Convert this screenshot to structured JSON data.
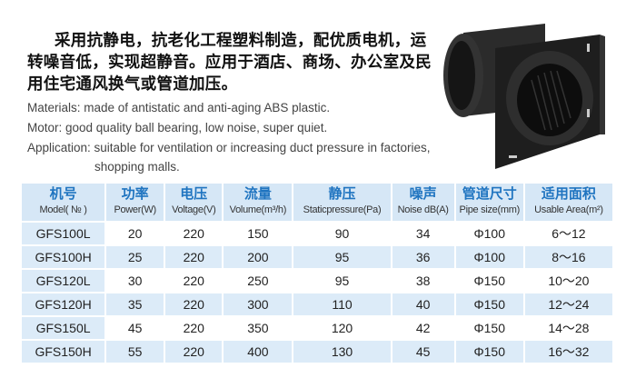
{
  "intro_cn": "采用抗静电，抗老化工程塑料制造，配优质电机，运转噪音低，实现超静音。应用于酒店、商场、办公室及民用住宅通风换气或管道加压。",
  "features": {
    "materials": "Materials: made of antistatic and anti-aging ABS plastic.",
    "motor": "Motor: good quality ball bearing, low noise, super quiet.",
    "application": "Application: suitable for ventilation or increasing duct pressure in factories,",
    "application_cont": "shopping malls."
  },
  "product_image": "black-abs-inline-duct-fan",
  "colors": {
    "header_text": "#1f74c0",
    "header_bg": "#d6e7f6",
    "row_bg": "#dcebf8"
  },
  "table": {
    "headers": [
      {
        "cn": "机号",
        "en": "Model( № )"
      },
      {
        "cn": "功率",
        "en": "Power(W)"
      },
      {
        "cn": "电压",
        "en": "Voltage(V)"
      },
      {
        "cn": "流量",
        "en": "Volume(m³/h)"
      },
      {
        "cn": "静压",
        "en": "Staticpressure(Pa)"
      },
      {
        "cn": "噪声",
        "en": "Noise dB(A)"
      },
      {
        "cn": "管道尺寸",
        "en": "Pipe size(mm)"
      },
      {
        "cn": "适用面积",
        "en": "Usable Area(m²)"
      }
    ],
    "rows": [
      [
        "GFS100L",
        "20",
        "220",
        "150",
        "90",
        "34",
        "Φ100",
        "6～12"
      ],
      [
        "GFS100H",
        "25",
        "220",
        "200",
        "95",
        "36",
        "Φ100",
        "8～16"
      ],
      [
        "GFS120L",
        "30",
        "220",
        "250",
        "95",
        "38",
        "Φ150",
        "10～20"
      ],
      [
        "GFS120H",
        "35",
        "220",
        "300",
        "110",
        "40",
        "Φ150",
        "12～24"
      ],
      [
        "GFS150L",
        "45",
        "220",
        "350",
        "120",
        "42",
        "Φ150",
        "14～28"
      ],
      [
        "GFS150H",
        "55",
        "220",
        "400",
        "130",
        "45",
        "Φ150",
        "16～32"
      ]
    ]
  }
}
